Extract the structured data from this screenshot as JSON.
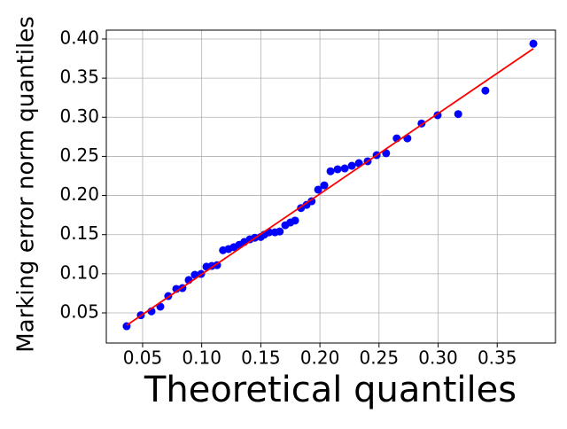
{
  "chart_data": {
    "type": "scatter",
    "xlabel": "Theoretical quantiles",
    "ylabel": "Marking error norm quantiles",
    "grid": true,
    "xlim": [
      0.0193,
      0.3993
    ],
    "ylim": [
      0.0115,
      0.4113
    ],
    "xticks": [
      0.05,
      {
        "value": 0.1,
        "label": "0.10"
      },
      0.15,
      {
        "value": 0.2,
        "label": "0.20"
      },
      0.25,
      {
        "value": 0.3,
        "label": "0.30"
      },
      0.35
    ],
    "yticks": [
      0.05,
      {
        "value": 0.1,
        "label": "0.10"
      },
      0.15,
      {
        "value": 0.2,
        "label": "0.20"
      },
      0.25,
      {
        "value": 0.3,
        "label": "0.30"
      },
      0.35,
      {
        "value": 0.4,
        "label": "0.40"
      }
    ],
    "series": [
      {
        "color": "#0000ff",
        "x": [
          0.0365,
          0.0485,
          0.0575,
          0.065,
          0.0717,
          0.0785,
          0.0837,
          0.089,
          0.0942,
          0.0995,
          0.104,
          0.1085,
          0.113,
          0.118,
          0.1227,
          0.1272,
          0.1317,
          0.136,
          0.1407,
          0.145,
          0.15,
          0.153,
          0.157,
          0.162,
          0.166,
          0.1707,
          0.175,
          0.179,
          0.184,
          0.1887,
          0.193,
          0.1985,
          0.2037,
          0.209,
          0.215,
          0.221,
          0.227,
          0.233,
          0.2404,
          0.248,
          0.256,
          0.265,
          0.274,
          0.286,
          0.2996,
          0.317,
          0.34,
          0.3806
        ],
        "values": [
          0.033,
          0.047,
          0.052,
          0.058,
          0.0715,
          0.0806,
          0.0817,
          0.092,
          0.0987,
          0.0998,
          0.109,
          0.11,
          0.111,
          0.13,
          0.1316,
          0.134,
          0.137,
          0.1406,
          0.144,
          0.146,
          0.147,
          0.15,
          0.153,
          0.153,
          0.154,
          0.162,
          0.1655,
          0.168,
          0.184,
          0.188,
          0.1927,
          0.2075,
          0.213,
          0.231,
          0.2335,
          0.2346,
          0.238,
          0.2414,
          0.2437,
          0.2516,
          0.254,
          0.273,
          0.273,
          0.292,
          0.3026,
          0.304,
          0.334,
          0.394
        ]
      },
      {
        "type": "line",
        "color": "#ff0000",
        "x": [
          0.0365,
          0.3806
        ],
        "values": [
          0.0341,
          0.3876
        ]
      }
    ]
  }
}
